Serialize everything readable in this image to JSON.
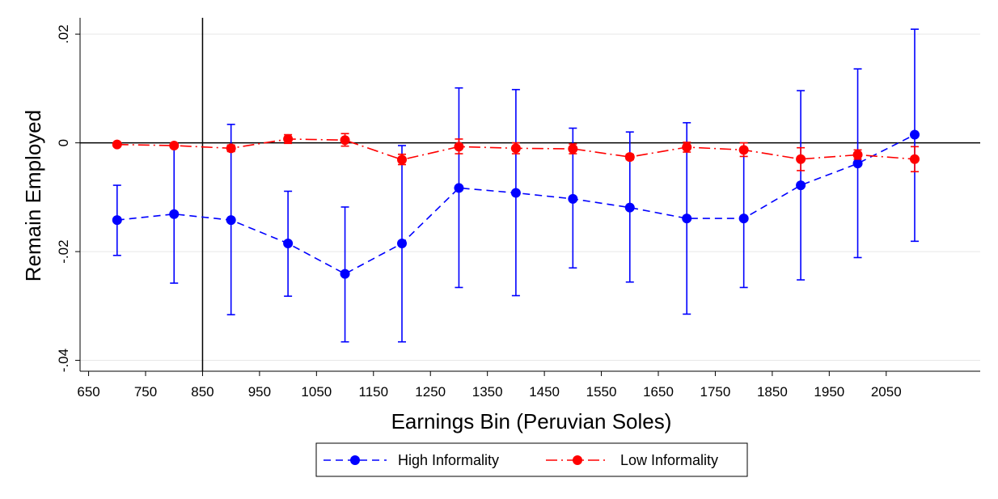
{
  "chart_data": {
    "type": "line",
    "xlabel": "Earnings Bin (Peruvian Soles)",
    "ylabel": "Remain Employed",
    "x_ticks": [
      650,
      750,
      850,
      950,
      1050,
      1150,
      1250,
      1350,
      1450,
      1550,
      1650,
      1750,
      1850,
      1950,
      2050
    ],
    "y_ticks": [
      -0.04,
      -0.02,
      0,
      0.02
    ],
    "y_tick_labels": [
      "-.04",
      "-.02",
      "0",
      ".02"
    ],
    "xlim": [
      635,
      2215
    ],
    "ylim": [
      -0.042,
      0.023
    ],
    "grid": true,
    "reference_lines": {
      "vertical_x": 850,
      "horizontal_y": 0
    },
    "legend_position": "bottom",
    "series": [
      {
        "name": "High Informality",
        "color": "#0000ff",
        "line_style": "dashed",
        "points": [
          {
            "x": 700,
            "y": -0.0142,
            "lo": -0.0207,
            "hi": -0.0078
          },
          {
            "x": 800,
            "y": -0.0131,
            "lo": -0.0258,
            "hi": -0.0005
          },
          {
            "x": 900,
            "y": -0.0142,
            "lo": -0.0316,
            "hi": 0.0034
          },
          {
            "x": 1000,
            "y": -0.0185,
            "lo": -0.0282,
            "hi": -0.0089
          },
          {
            "x": 1100,
            "y": -0.0241,
            "lo": -0.0366,
            "hi": -0.0118
          },
          {
            "x": 1200,
            "y": -0.0185,
            "lo": -0.0366,
            "hi": -0.0005
          },
          {
            "x": 1300,
            "y": -0.0083,
            "lo": -0.0266,
            "hi": 0.0101
          },
          {
            "x": 1400,
            "y": -0.0092,
            "lo": -0.0281,
            "hi": 0.0098
          },
          {
            "x": 1500,
            "y": -0.0103,
            "lo": -0.023,
            "hi": 0.0027
          },
          {
            "x": 1600,
            "y": -0.0119,
            "lo": -0.0256,
            "hi": 0.002
          },
          {
            "x": 1700,
            "y": -0.0139,
            "lo": -0.0315,
            "hi": 0.0037
          },
          {
            "x": 1800,
            "y": -0.0139,
            "lo": -0.0266,
            "hi": -0.0012
          },
          {
            "x": 1900,
            "y": -0.0078,
            "lo": -0.0252,
            "hi": 0.0096
          },
          {
            "x": 2000,
            "y": -0.0038,
            "lo": -0.0211,
            "hi": 0.0136
          },
          {
            "x": 2100,
            "y": 0.0015,
            "lo": -0.0181,
            "hi": 0.0209
          }
        ]
      },
      {
        "name": "Low Informality",
        "color": "#ff0000",
        "line_style": "dash-dot",
        "points": [
          {
            "x": 700,
            "y": -0.0003,
            "lo": -0.0005,
            "hi": -0.0001
          },
          {
            "x": 800,
            "y": -0.0005,
            "lo": -0.0008,
            "hi": -0.0002
          },
          {
            "x": 900,
            "y": -0.001,
            "lo": -0.0016,
            "hi": -0.0004
          },
          {
            "x": 1000,
            "y": 0.0007,
            "lo": -0.0001,
            "hi": 0.0015
          },
          {
            "x": 1100,
            "y": 0.0005,
            "lo": -0.0006,
            "hi": 0.0017
          },
          {
            "x": 1200,
            "y": -0.0031,
            "lo": -0.004,
            "hi": -0.0021
          },
          {
            "x": 1300,
            "y": -0.0007,
            "lo": -0.002,
            "hi": 0.0007
          },
          {
            "x": 1400,
            "y": -0.001,
            "lo": -0.002,
            "hi": 0.0
          },
          {
            "x": 1500,
            "y": -0.0011,
            "lo": -0.002,
            "hi": -0.0002
          },
          {
            "x": 1600,
            "y": -0.0026,
            "lo": -0.0031,
            "hi": -0.0021
          },
          {
            "x": 1700,
            "y": -0.0008,
            "lo": -0.0017,
            "hi": 0.0001
          },
          {
            "x": 1800,
            "y": -0.0013,
            "lo": -0.0025,
            "hi": 0.0
          },
          {
            "x": 1900,
            "y": -0.003,
            "lo": -0.0051,
            "hi": -0.0009
          },
          {
            "x": 2000,
            "y": -0.0022,
            "lo": -0.003,
            "hi": -0.0013
          },
          {
            "x": 2100,
            "y": -0.003,
            "lo": -0.0053,
            "hi": -0.0007
          }
        ]
      }
    ]
  }
}
